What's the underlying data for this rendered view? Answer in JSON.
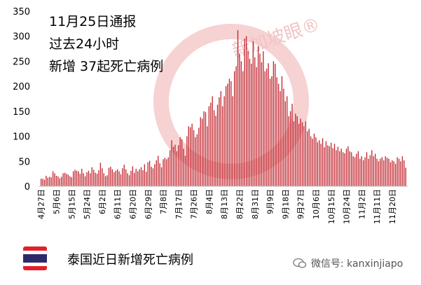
{
  "annotation": {
    "line1": "11月25日通报",
    "line2": "过去24小时",
    "line3": "新增 37起死亡病例"
  },
  "watermark_text": "新加坡眼®",
  "legend_label": "泰国近日新增死亡病例",
  "wechat": "微信号: kanxinjiapo",
  "colors": {
    "bar": "#c0262f",
    "flag_red": "#e21f2e",
    "flag_white": "#ffffff",
    "flag_blue": "#2d2a6b"
  },
  "chart_data": {
    "type": "bar",
    "title": "",
    "xlabel": "",
    "ylabel": "",
    "ylim": [
      0,
      350
    ],
    "yticks": [
      0,
      50,
      100,
      150,
      200,
      250,
      300,
      350
    ],
    "grid": false,
    "start_date": "2021-04-27",
    "end_date": "2021-11-25",
    "xtick_labels": [
      "4月27日",
      "5月6日",
      "5月15日",
      "5月24日",
      "6月2日",
      "6月11日",
      "6月20日",
      "6月29日",
      "7月8日",
      "7月17日",
      "7月26日",
      "8月4日",
      "8月13日",
      "8月22日",
      "8月31日",
      "9月9日",
      "9月18日",
      "9月27日",
      "10月6日",
      "10月15日",
      "10月24日",
      "11月2日",
      "11月11日",
      "11月20日"
    ],
    "series": [
      {
        "name": "泰国近日新增死亡病例",
        "values": [
          15,
          15,
          13,
          21,
          17,
          19,
          18,
          30,
          26,
          21,
          20,
          16,
          19,
          26,
          27,
          25,
          23,
          20,
          18,
          30,
          33,
          31,
          30,
          25,
          35,
          26,
          20,
          28,
          31,
          26,
          38,
          33,
          27,
          25,
          32,
          47,
          36,
          26,
          20,
          22,
          37,
          39,
          34,
          28,
          31,
          34,
          30,
          24,
          36,
          43,
          34,
          26,
          22,
          31,
          40,
          27,
          35,
          30,
          34,
          38,
          32,
          44,
          29,
          48,
          51,
          39,
          36,
          44,
          52,
          61,
          46,
          38,
          54,
          57,
          54,
          58,
          72,
          92,
          79,
          83,
          70,
          82,
          98,
          94,
          75,
          61,
          100,
          120,
          118,
          125,
          112,
          98,
          104,
          117,
          138,
          135,
          150,
          148,
          120,
          160,
          167,
          180,
          152,
          141,
          163,
          178,
          190,
          160,
          180,
          200,
          205,
          215,
          210,
          180,
          230,
          240,
          312,
          265,
          250,
          230,
          295,
          300,
          270,
          255,
          245,
          290,
          258,
          238,
          280,
          265,
          248,
          270,
          230,
          235,
          246,
          215,
          220,
          250,
          245,
          218,
          205,
          190,
          220,
          195,
          170,
          180,
          140,
          150,
          165,
          130,
          145,
          140,
          125,
          135,
          128,
          120,
          130,
          110,
          115,
          100,
          95,
          105,
          98,
          88,
          92,
          85,
          96,
          78,
          90,
          82,
          80,
          87,
          76,
          85,
          72,
          79,
          70,
          75,
          68,
          66,
          75,
          80,
          70,
          68,
          60,
          58,
          65,
          70,
          55,
          60,
          52,
          58,
          68,
          55,
          62,
          72,
          60,
          65,
          55,
          50,
          55,
          58,
          52,
          60,
          57,
          55,
          48,
          52,
          50,
          45,
          58,
          55,
          50,
          60,
          52,
          37
        ]
      }
    ]
  }
}
